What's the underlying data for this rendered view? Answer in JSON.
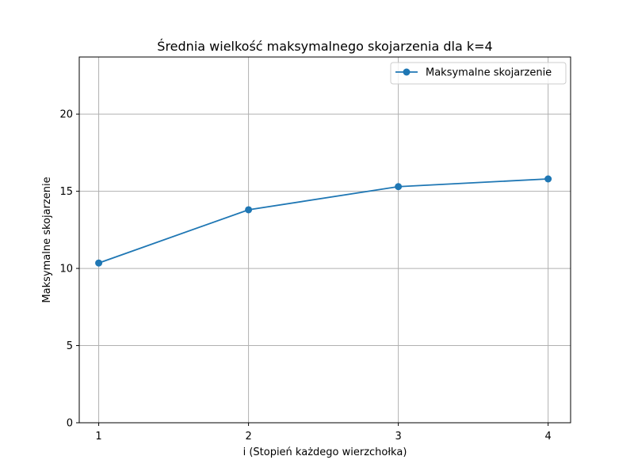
{
  "chart_data": {
    "type": "line",
    "title": "Średnia wielkość maksymalnego skojarzenia dla k=4",
    "xlabel": "i (Stopień każdego wierzchołka)",
    "ylabel": "Maksymalne skojarzenie",
    "x": [
      1,
      2,
      3,
      4
    ],
    "xticks": [
      "1",
      "2",
      "3",
      "4"
    ],
    "xlim": [
      0.87,
      4.15
    ],
    "ylim": [
      0,
      23.7
    ],
    "yticks": [
      "0",
      "5",
      "10",
      "15",
      "20"
    ],
    "ytick_values": [
      0,
      5,
      10,
      15,
      20
    ],
    "grid": true,
    "legend_position": "top-right",
    "series": [
      {
        "name": "Maksymalne skojarzenie",
        "values": [
          10.35,
          13.8,
          15.3,
          15.8
        ],
        "color": "#1f77b4",
        "marker": "circle"
      }
    ]
  }
}
